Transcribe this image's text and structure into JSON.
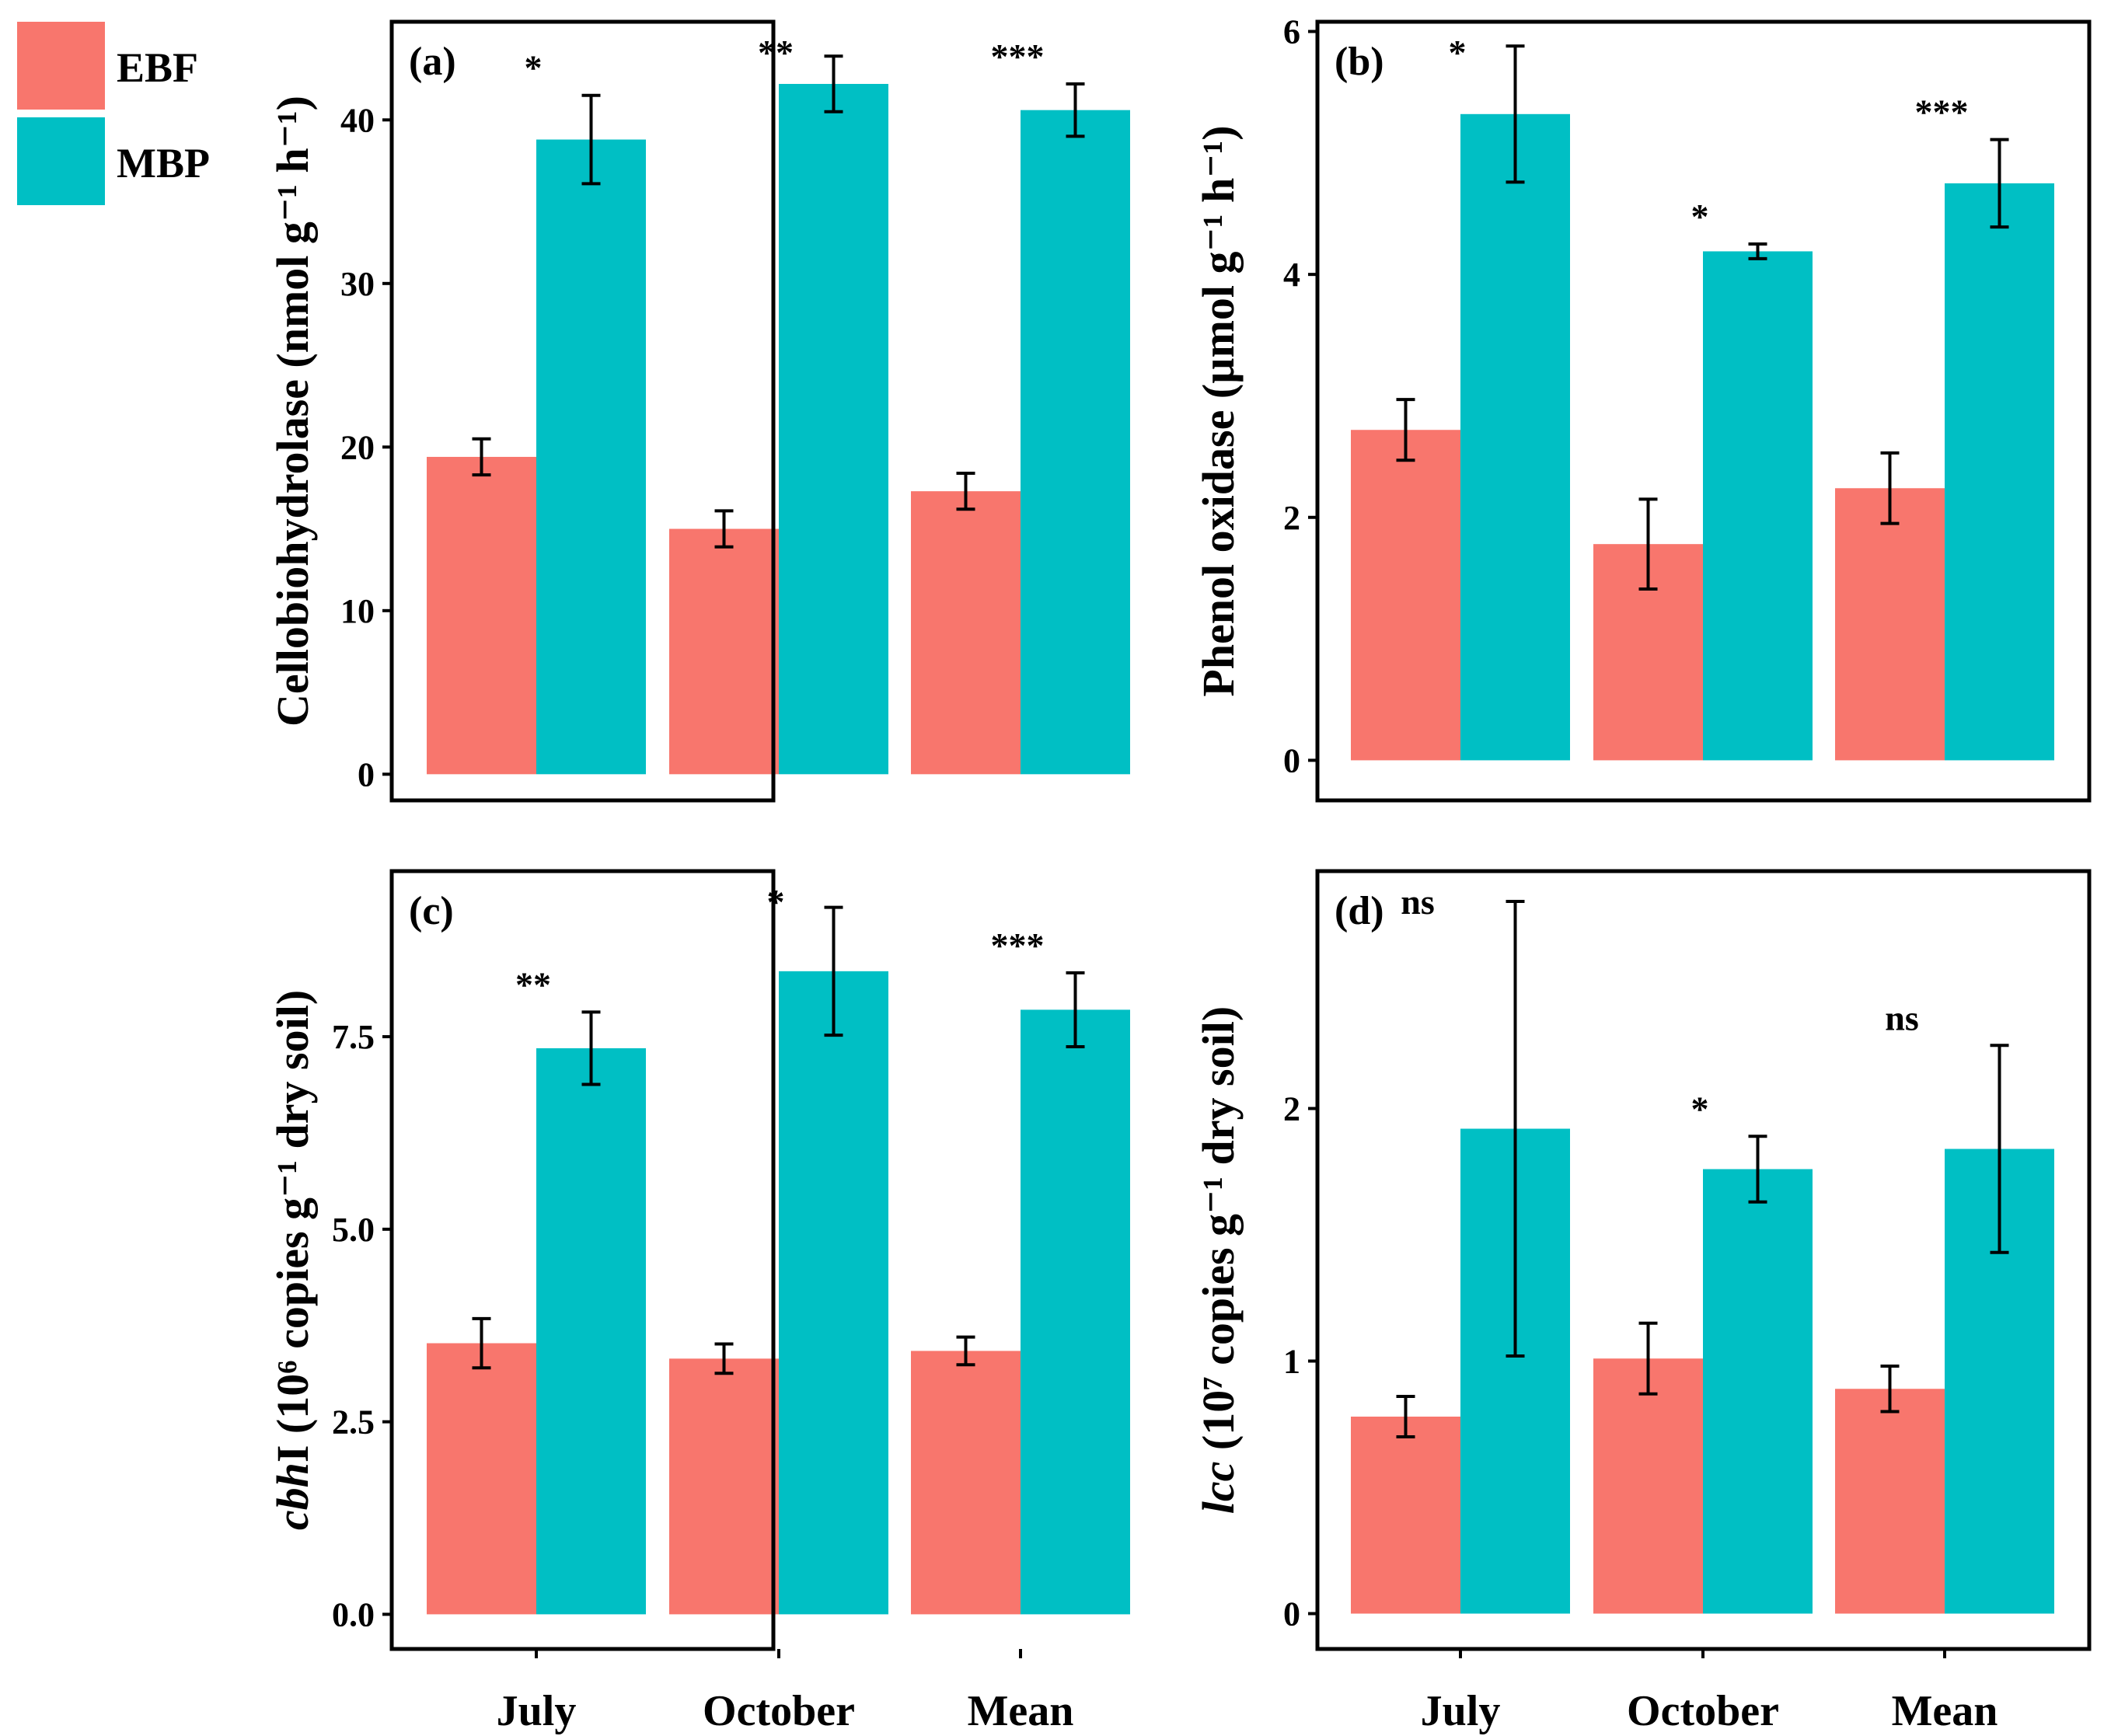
{
  "legend": [
    {
      "key": "EBF",
      "label": "EBF",
      "color": "#F8766D"
    },
    {
      "key": "MBP",
      "label": "MBP",
      "color": "#00BFC4"
    }
  ],
  "chart_data": [
    {
      "panel": "(a)",
      "type": "bar",
      "categories": [
        "July",
        "October",
        "Mean"
      ],
      "series": [
        {
          "name": "EBF",
          "values": [
            19.4,
            15.0,
            17.3
          ],
          "errors": [
            1.1,
            1.1,
            1.1
          ]
        },
        {
          "name": "MBP",
          "values": [
            38.8,
            42.2,
            40.6
          ],
          "errors": [
            2.7,
            1.7,
            1.6
          ]
        }
      ],
      "significance": [
        "*",
        "**",
        "***"
      ],
      "ylabel": "Cellobiohydrolase (nmol g⁻¹ h⁻¹)",
      "ylim": [
        -1.6,
        46
      ],
      "yticks": [
        0,
        10,
        20,
        30,
        40
      ],
      "ytick_labels": [
        "0",
        "10",
        "20",
        "30",
        "40"
      ],
      "show_x_labels": false
    },
    {
      "panel": "(b)",
      "type": "bar",
      "categories": [
        "July",
        "October",
        "Mean"
      ],
      "series": [
        {
          "name": "EBF",
          "values": [
            2.72,
            1.78,
            2.24
          ],
          "errors": [
            0.25,
            0.37,
            0.29
          ]
        },
        {
          "name": "MBP",
          "values": [
            5.32,
            4.19,
            4.75
          ],
          "errors": [
            0.56,
            0.06,
            0.36
          ]
        }
      ],
      "significance": [
        "*",
        "*",
        "***"
      ],
      "ylabel": "Phenol oxidase (µmol g⁻¹ h⁻¹)",
      "ylim": [
        -0.33,
        6.08
      ],
      "yticks": [
        0,
        2,
        4,
        6
      ],
      "ytick_labels": [
        "0",
        "2",
        "4",
        "6"
      ],
      "show_x_labels": false
    },
    {
      "panel": "(c)",
      "type": "bar",
      "categories": [
        "July",
        "October",
        "Mean"
      ],
      "series": [
        {
          "name": "EBF",
          "values": [
            3.52,
            3.32,
            3.42
          ],
          "errors": [
            0.32,
            0.19,
            0.18
          ]
        },
        {
          "name": "MBP",
          "values": [
            7.35,
            8.35,
            7.85
          ],
          "errors": [
            0.47,
            0.83,
            0.48
          ]
        }
      ],
      "significance": [
        "**",
        "*",
        "***"
      ],
      "ylabel": "cbhI (10⁶ copies g⁻¹ dry soil)",
      "ylabel_italic": "cbh",
      "ylabel_rest": "I (10⁶ copies g⁻¹ dry soil)",
      "ylim": [
        -0.45,
        9.65
      ],
      "yticks": [
        0,
        2.5,
        5,
        7.5
      ],
      "ytick_labels": [
        "0.0",
        "2.5",
        "5.0",
        "7.5"
      ],
      "show_x_labels": true
    },
    {
      "panel": "(d)",
      "type": "bar",
      "categories": [
        "July",
        "October",
        "Mean"
      ],
      "series": [
        {
          "name": "EBF",
          "values": [
            0.78,
            1.01,
            0.89
          ],
          "errors": [
            0.08,
            0.14,
            0.09
          ]
        },
        {
          "name": "MBP",
          "values": [
            1.92,
            1.76,
            1.84
          ],
          "errors": [
            0.9,
            0.13,
            0.41
          ]
        }
      ],
      "significance": [
        "ns",
        "*",
        "ns"
      ],
      "ylabel": "lcc (10⁷ copies g⁻¹ dry soil)",
      "ylabel_italic": "lcc",
      "ylabel_rest": " (10⁷ copies g⁻¹ dry soil)",
      "ylim": [
        -0.14,
        2.94
      ],
      "yticks": [
        0,
        1,
        2
      ],
      "ytick_labels": [
        "0",
        "1",
        "2"
      ],
      "show_x_labels": true
    }
  ]
}
